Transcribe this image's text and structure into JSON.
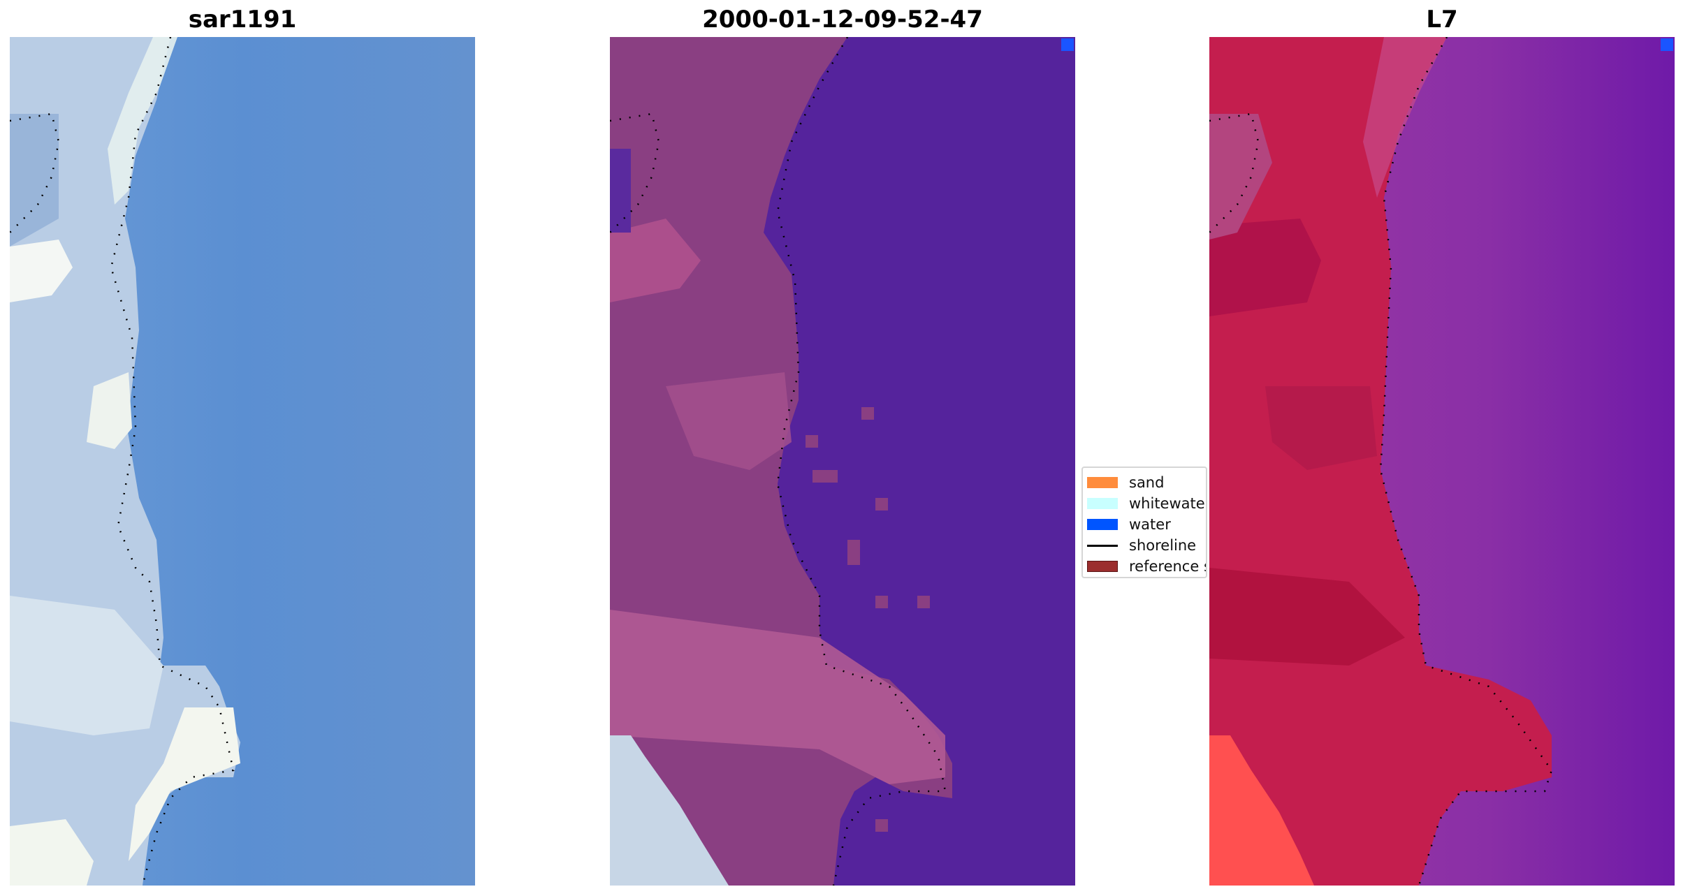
{
  "panels": [
    {
      "title": "sar1191",
      "kind": "rgb"
    },
    {
      "title": "2000-01-12-09-52-47",
      "kind": "classified"
    },
    {
      "title": "L7",
      "kind": "index"
    }
  ],
  "legend": {
    "items": [
      {
        "label": "sand",
        "color": "#ff8c3c",
        "type": "patch"
      },
      {
        "label": "whitewater",
        "color": "#c8ffff",
        "type": "patch"
      },
      {
        "label": "water",
        "color": "#0055ff",
        "type": "patch"
      },
      {
        "label": "shoreline",
        "color": "#000000",
        "type": "line"
      },
      {
        "label": "reference shoreline buffer",
        "color": "#9b2d2d",
        "type": "patch"
      }
    ]
  },
  "colors": {
    "rgb_water": "#5b8fd2",
    "rgb_land": "#bccfe6",
    "rgb_foam": "#f2f6f2",
    "class_water": "#55239c",
    "class_land": "#8a3f82",
    "class_land_light": "#b0558f",
    "class_corner_land": "#c7d6e6",
    "index_water": "#8a2fa6",
    "index_land": "#c41e4e",
    "index_land_hot": "#ff5050",
    "shoreline_dots": "#000000",
    "water_pixel": "#1a55ff"
  }
}
